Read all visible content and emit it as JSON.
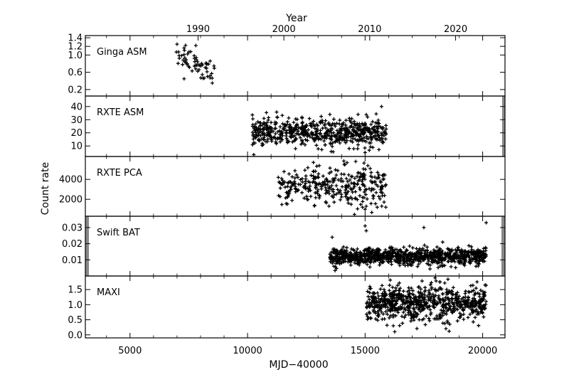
{
  "chart_data": {
    "type": "scatter",
    "xlabel": "MJD−40000",
    "ylabel": "Count rate",
    "top_axis_label": "Year",
    "xlim": [
      3100,
      20950
    ],
    "x_ticks": [
      5000,
      10000,
      15000,
      20000
    ],
    "top_axis": {
      "ticks": [
        {
          "label": "1990",
          "x": 7893
        },
        {
          "label": "2000",
          "x": 11545
        },
        {
          "label": "2010",
          "x": 15197
        },
        {
          "label": "2020",
          "x": 18849
        }
      ]
    },
    "panels": [
      {
        "name": "Ginga ASM",
        "ylim": [
          0.05,
          1.45
        ],
        "yticks": [
          0.2,
          0.6,
          1.0,
          1.2,
          1.4
        ],
        "ytick_labels": [
          "0.2",
          "0.6",
          "1.0",
          "1.2",
          "1.4"
        ],
        "x_start": 6900,
        "x_end": 8600,
        "y_center": 0.8,
        "y_spread": 0.22,
        "count": 60,
        "outliers": [
          [
            7800,
            1.22
          ],
          [
            7000,
            1.25
          ],
          [
            8500,
            0.35
          ],
          [
            7300,
            0.45
          ]
        ]
      },
      {
        "name": "RXTE ASM",
        "ylim": [
          2,
          48
        ],
        "yticks": [
          10,
          20,
          30,
          40
        ],
        "ytick_labels": [
          "10",
          "20",
          "30",
          "40"
        ],
        "x_start": 10200,
        "x_end": 15900,
        "y_center": 20,
        "y_spread": 5,
        "count": 620,
        "outliers": [
          [
            15700,
            40
          ],
          [
            15000,
            5
          ],
          [
            14700,
            34
          ],
          [
            13500,
            34
          ]
        ]
      },
      {
        "name": "RXTE PCA",
        "ylim": [
          300,
          6300
        ],
        "yticks": [
          2000,
          4000
        ],
        "ytick_labels": [
          "2000",
          "4000"
        ],
        "x_start": 11300,
        "x_end": 15900,
        "y_center": 3300,
        "y_spread": 1000,
        "count": 330,
        "outliers": [
          [
            14600,
            5800
          ],
          [
            15000,
            1000
          ],
          [
            15050,
            1300
          ],
          [
            12800,
            5700
          ]
        ]
      },
      {
        "name": "Swift BAT",
        "ylim": [
          0.0,
          0.037
        ],
        "yticks": [
          0.01,
          0.02,
          0.03
        ],
        "ytick_labels": [
          "0.01",
          "0.02",
          "0.03"
        ],
        "x_start": 13500,
        "x_end": 20150,
        "y_center": 0.012,
        "y_spread": 0.0026,
        "count": 900,
        "outliers": [
          [
            20150,
            0.033
          ],
          [
            15000,
            0.031
          ],
          [
            15050,
            0.028
          ],
          [
            17500,
            0.03
          ],
          [
            18300,
            0.021
          ],
          [
            13600,
            0.024
          ]
        ]
      },
      {
        "name": "MAXI",
        "ylim": [
          -0.1,
          1.95
        ],
        "yticks": [
          0.0,
          0.5,
          1.0,
          1.5
        ],
        "ytick_labels": [
          "0.0",
          "0.5",
          "1.0",
          "1.5"
        ],
        "x_start": 15050,
        "x_end": 20150,
        "y_center": 1.05,
        "y_spread": 0.28,
        "count": 720,
        "outliers": [
          [
            20100,
            1.65
          ],
          [
            18600,
            0.35
          ],
          [
            16200,
            0.3
          ],
          [
            15200,
            1.6
          ]
        ]
      }
    ],
    "grid": false,
    "legend": "none"
  }
}
